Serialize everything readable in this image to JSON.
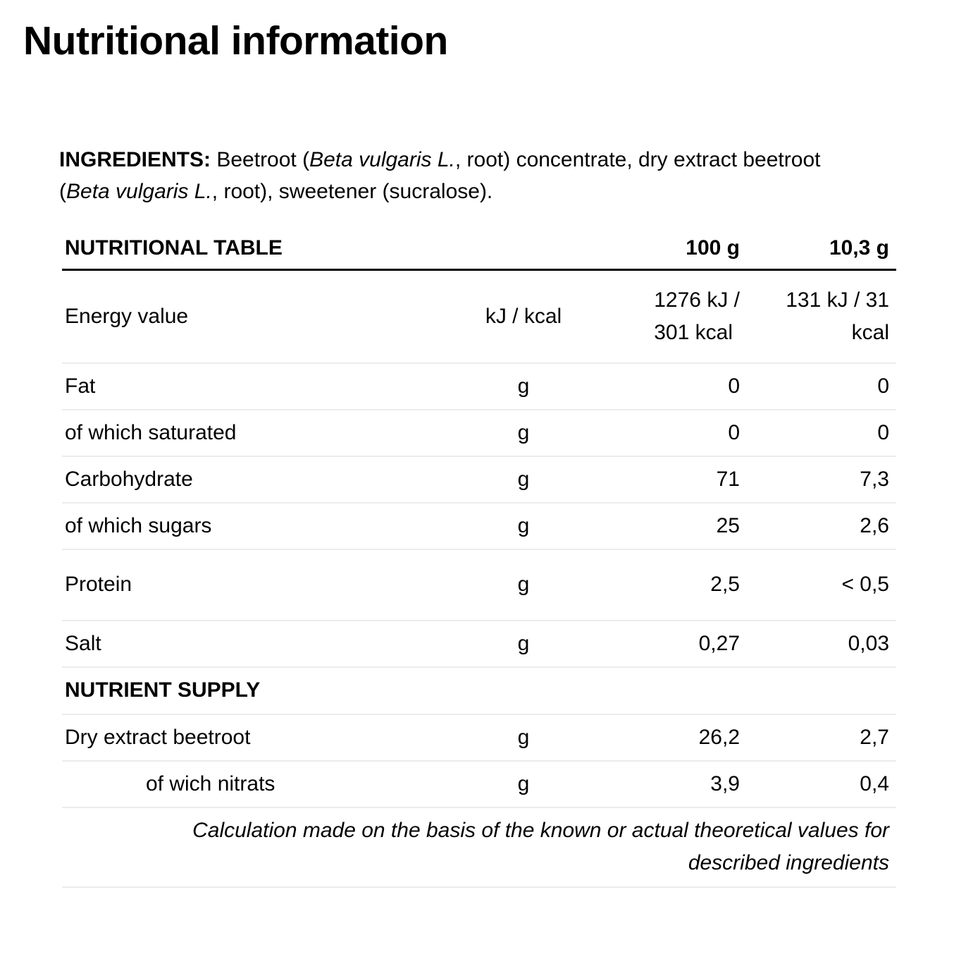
{
  "page_title": "Nutritional information",
  "style": {
    "text_color": "#000000",
    "divider_color": "#ececec",
    "header_rule_color": "#000000"
  },
  "ingredients": {
    "label": "INGREDIENTS:",
    "text_1": " Beetroot (",
    "italic_1": "Beta vulgaris L.",
    "text_2": ", root) concentrate, dry extract beetroot (",
    "italic_2": "Beta vulgaris L.",
    "text_3": ", root), sweetener  (sucralose)."
  },
  "table": {
    "title": "NUTRITIONAL TABLE",
    "col_100g": "100 g",
    "col_serving": "10,3 g",
    "rows": [
      {
        "label": "Energy value",
        "unit": "kJ / kcal",
        "v100": "1276 kJ /\n301 kcal",
        "vserv": "131 kJ / 31\nkcal"
      },
      {
        "label": "Fat",
        "unit": "g",
        "v100": "0",
        "vserv": "0"
      },
      {
        "label": "of which saturated",
        "unit": "g",
        "v100": "0",
        "vserv": "0"
      },
      {
        "label": "Carbohydrate",
        "unit": "g",
        "v100": "71",
        "vserv": "7,3"
      },
      {
        "label": "of which sugars",
        "unit": "g",
        "v100": "25",
        "vserv": "2,6"
      },
      {
        "label": "Protein",
        "unit": "g",
        "v100": "2,5",
        "vserv": "< 0,5"
      },
      {
        "label": "Salt",
        "unit": "g",
        "v100": "0,27",
        "vserv": "0,03"
      }
    ],
    "section_heading": "NUTRIENT SUPPLY",
    "supply_rows": [
      {
        "label": "Dry extract beetroot",
        "unit": "g",
        "v100": "26,2",
        "vserv": "2,7"
      },
      {
        "label": "of wich nitrats",
        "unit": "g",
        "v100": "3,9",
        "vserv": "0,4"
      }
    ],
    "footnote": "Calculation made on the basis of the known or actual theoretical values for\ndescribed ingredients"
  }
}
